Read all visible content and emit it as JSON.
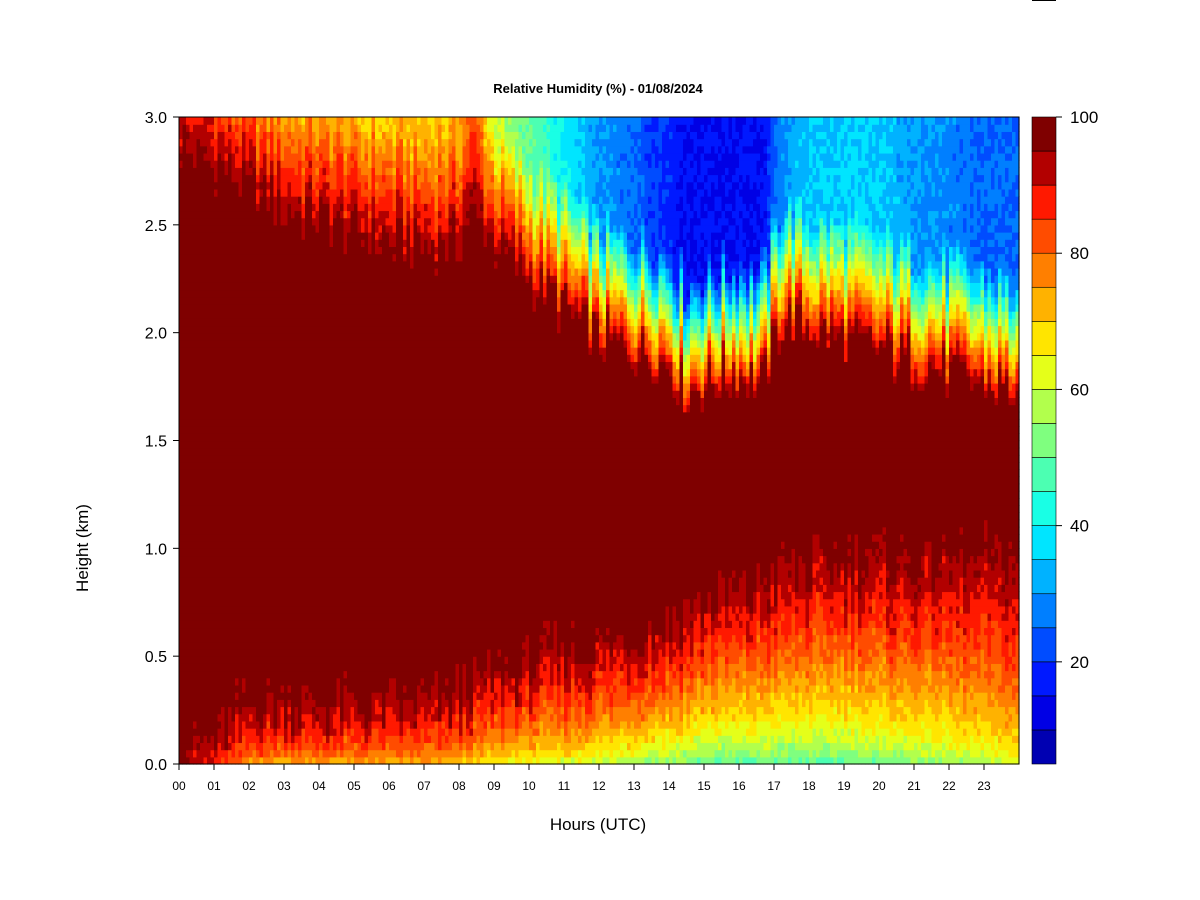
{
  "chart_data": {
    "type": "heatmap",
    "title": "Relative Humidity (%) - 01/08/2024",
    "xlabel": "Hours (UTC)",
    "ylabel": "Height (km)",
    "x_ticks": [
      "00",
      "01",
      "02",
      "03",
      "04",
      "05",
      "06",
      "07",
      "08",
      "09",
      "10",
      "11",
      "12",
      "13",
      "14",
      "15",
      "16",
      "17",
      "18",
      "19",
      "20",
      "21",
      "22",
      "23"
    ],
    "x_range": [
      0,
      24
    ],
    "y_ticks": [
      "0.0",
      "0.5",
      "1.0",
      "1.5",
      "2.0",
      "2.5",
      "3.0"
    ],
    "y_range": [
      0,
      3
    ],
    "colorbar": {
      "range": [
        5,
        100
      ],
      "levels": [
        5,
        10,
        15,
        20,
        25,
        30,
        35,
        40,
        45,
        50,
        55,
        60,
        65,
        70,
        75,
        80,
        85,
        90,
        95,
        100
      ],
      "tick_values": [
        20,
        40,
        60,
        80,
        100
      ],
      "tick_labels": [
        "20",
        "40",
        "60",
        "80",
        "100"
      ],
      "colors": [
        "#00007f",
        "#0000b2",
        "#0000e5",
        "#0019ff",
        "#004cff",
        "#007fff",
        "#00b2ff",
        "#00e5ff",
        "#19ffe5",
        "#4cffb2",
        "#7fff7f",
        "#b2ff4c",
        "#e5ff19",
        "#ffe500",
        "#ffb200",
        "#ff7f00",
        "#ff4c00",
        "#ff1900",
        "#b20000",
        "#7f0000"
      ]
    },
    "profile_hours": [
      0,
      1,
      2,
      3,
      4,
      5,
      6,
      7,
      8,
      8.4,
      9,
      10,
      11,
      12,
      13,
      14,
      14.5,
      15,
      16,
      16.7,
      17,
      17.3,
      18,
      19,
      20,
      21,
      22,
      23,
      24
    ],
    "moist_layer_top_km": [
      2.85,
      2.75,
      2.65,
      2.55,
      2.5,
      2.45,
      2.4,
      2.38,
      2.4,
      2.55,
      2.4,
      2.25,
      2.1,
      1.95,
      1.9,
      1.85,
      1.7,
      1.75,
      1.8,
      1.75,
      1.95,
      2.05,
      2.0,
      1.95,
      1.9,
      1.85,
      1.8,
      1.75,
      1.7
    ],
    "minimum_rh_aloft_pct": [
      80,
      75,
      70,
      70,
      72,
      70,
      70,
      70,
      72,
      80,
      60,
      50,
      40,
      30,
      25,
      18,
      15,
      15,
      15,
      15,
      25,
      30,
      35,
      35,
      35,
      30,
      28,
      25,
      25
    ],
    "moist_layer_base_km": [
      0.12,
      0.15,
      0.3,
      0.32,
      0.3,
      0.3,
      0.3,
      0.32,
      0.35,
      0.4,
      0.45,
      0.5,
      0.55,
      0.6,
      0.65,
      0.7,
      0.75,
      0.8,
      0.85,
      0.9,
      0.92,
      0.95,
      0.98,
      1.0,
      1.0,
      1.0,
      1.0,
      1.0,
      1.0
    ],
    "surface_rh_pct": [
      95,
      85,
      72,
      70,
      72,
      70,
      70,
      70,
      70,
      65,
      62,
      60,
      58,
      56,
      52,
      50,
      48,
      45,
      45,
      45,
      45,
      45,
      45,
      45,
      48,
      50,
      52,
      55,
      60
    ]
  }
}
